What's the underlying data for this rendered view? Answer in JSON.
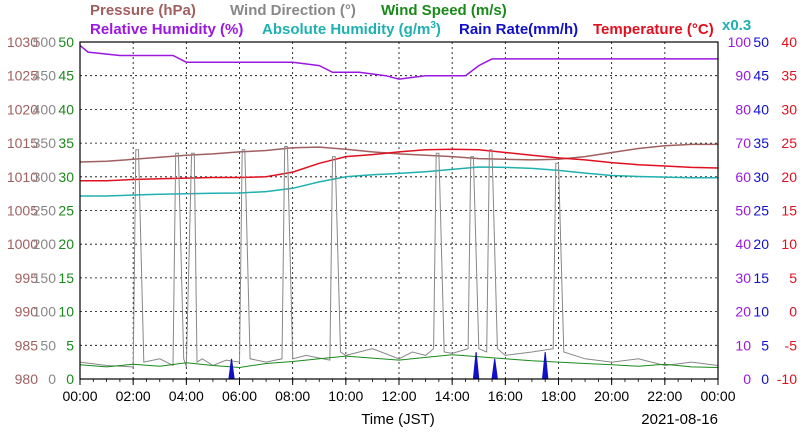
{
  "chart_data": {
    "type": "line",
    "date": "2021-08-16",
    "xlabel": "Time (JST)",
    "x_ticks": [
      "00:00",
      "02:00",
      "04:00",
      "06:00",
      "08:00",
      "10:00",
      "12:00",
      "14:00",
      "16:00",
      "18:00",
      "20:00",
      "22:00",
      "00:00"
    ],
    "grid": true,
    "legend": {
      "row1": [
        {
          "text": "Pressure (hPa)",
          "color": "#a06060"
        },
        {
          "text": "Wind Direction (°)",
          "color": "#888888"
        },
        {
          "text": "Wind Speed (m/s)",
          "color": "#1a8a1a"
        }
      ],
      "row2": [
        {
          "text": "Relative Humidity (%)",
          "color": "#9a18e0"
        },
        {
          "text": "Absolute Humidity (g/m",
          "sup": "3",
          "tail": ")",
          "color": "#20b0b0"
        },
        {
          "text": "Rain Rate(mm/h)",
          "color": "#1010c8"
        },
        {
          "text": "Temperature (°C)",
          "color": "#e01020"
        },
        {
          "text": "x0.3",
          "color": "#20b0b0"
        }
      ]
    },
    "axes": {
      "pressure": {
        "label": "Pressure (hPa)",
        "range": [
          980,
          1030
        ],
        "ticks": [
          "980",
          "985",
          "990",
          "995",
          "1000",
          "1005",
          "1010",
          "1015",
          "1020",
          "1025",
          "1030"
        ],
        "color": "#a06060"
      },
      "wind_direction": {
        "label": "Wind Direction (°)",
        "range": [
          0,
          500
        ],
        "ticks": [
          "0",
          "50",
          "100",
          "150",
          "200",
          "250",
          "300",
          "350",
          "400",
          "450",
          "500"
        ],
        "color": "#888888"
      },
      "wind_speed": {
        "label": "Wind Speed (m/s)",
        "range": [
          0,
          50
        ],
        "ticks": [
          "0",
          "5",
          "10",
          "15",
          "20",
          "25",
          "30",
          "35",
          "40",
          "45",
          "50"
        ],
        "color": "#1a8a1a"
      },
      "relative_humidity": {
        "label": "Relative Humidity (%)",
        "range": [
          0,
          100
        ],
        "ticks": [
          "0",
          "10",
          "20",
          "30",
          "40",
          "50",
          "60",
          "70",
          "80",
          "90",
          "100"
        ],
        "color": "#9a18e0"
      },
      "rain_rate": {
        "label": "Rain Rate(mm/h)",
        "range": [
          0,
          50
        ],
        "ticks": [
          "0",
          "5",
          "10",
          "15",
          "20",
          "25",
          "30",
          "35",
          "40",
          "45",
          "50"
        ],
        "color": "#1010c8"
      },
      "temperature": {
        "label": "Temperature (°C)",
        "range": [
          -10,
          40
        ],
        "ticks": [
          "-10",
          "-5",
          "0",
          "5",
          "10",
          "15",
          "20",
          "25",
          "30",
          "35",
          "40"
        ],
        "color": "#e01020"
      }
    },
    "series": [
      {
        "name": "Pressure (hPa)",
        "axis": "pressure",
        "color": "#a06060",
        "x": [
          0,
          1,
          2,
          3,
          4,
          5,
          6,
          7,
          8,
          9,
          10,
          11,
          12,
          13,
          14,
          15,
          16,
          17,
          18,
          19,
          20,
          21,
          22,
          23,
          24
        ],
        "y": [
          1012.2,
          1012.3,
          1012.6,
          1012.9,
          1013.2,
          1013.4,
          1013.7,
          1013.9,
          1014.3,
          1014.4,
          1014.1,
          1013.7,
          1013.4,
          1013.2,
          1013.0,
          1012.7,
          1012.6,
          1012.5,
          1012.6,
          1013.0,
          1013.6,
          1014.2,
          1014.6,
          1014.8,
          1014.8
        ]
      },
      {
        "name": "Relative Humidity (%)",
        "axis": "relative_humidity",
        "color": "#9a18e0",
        "x": [
          0,
          0.3,
          1.5,
          3.5,
          4,
          6,
          8,
          9,
          9.5,
          10.5,
          11.5,
          12,
          13,
          14,
          14.5,
          15,
          15.5,
          16,
          18,
          20,
          22,
          24
        ],
        "y": [
          99,
          97,
          96,
          96,
          94,
          94,
          94,
          93,
          91,
          91,
          90,
          89,
          90,
          90,
          90,
          93,
          95,
          95,
          95,
          95,
          95,
          95
        ]
      },
      {
        "name": "Absolute Humidity (g/m³)",
        "axis": "relative_humidity",
        "color": "#20b0b0",
        "x": [
          0,
          1,
          2,
          3,
          4,
          5,
          6,
          7,
          8,
          9,
          10,
          11,
          12,
          13,
          14,
          15,
          16,
          17,
          18,
          19,
          20,
          21,
          22,
          23,
          24
        ],
        "y": [
          54.3,
          54.3,
          54.6,
          54.8,
          55.0,
          55.1,
          55.2,
          55.6,
          56.6,
          58.5,
          60.0,
          60.6,
          61.0,
          61.5,
          62.2,
          62.9,
          62.8,
          62.5,
          61.9,
          61.1,
          60.4,
          60.1,
          59.9,
          59.7,
          59.7
        ]
      },
      {
        "name": "Temperature (°C)",
        "axis": "temperature",
        "color": "#e01020",
        "x": [
          0,
          1,
          2,
          3,
          4,
          5,
          6,
          7,
          8,
          9,
          10,
          11,
          12,
          13,
          14,
          15,
          16,
          17,
          18,
          19,
          20,
          21,
          22,
          23,
          24
        ],
        "y": [
          19.4,
          19.4,
          19.6,
          19.7,
          19.8,
          19.9,
          19.9,
          20.0,
          20.7,
          22.0,
          23.0,
          23.3,
          23.7,
          24.0,
          24.1,
          24.0,
          23.6,
          23.2,
          22.8,
          22.5,
          22.1,
          21.8,
          21.6,
          21.4,
          21.3
        ]
      },
      {
        "name": "Wind Direction (°)",
        "axis": "wind_direction",
        "color": "#888888",
        "x": [
          0,
          1,
          2,
          2.1,
          2.2,
          2.4,
          3,
          3.5,
          3.6,
          3.7,
          3.9,
          4,
          4.2,
          4.3,
          4.4,
          4.6,
          5,
          5.5,
          6,
          6.1,
          6.2,
          6.4,
          7,
          7.6,
          7.7,
          7.8,
          8,
          8.5,
          9.4,
          9.5,
          9.6,
          9.8,
          10,
          11,
          12,
          12.5,
          13,
          13.3,
          13.4,
          13.5,
          13.7,
          14,
          14.6,
          14.7,
          14.8,
          15,
          15.3,
          15.4,
          15.5,
          15.7,
          16,
          17,
          17.8,
          17.9,
          18,
          18.2,
          19,
          20,
          21,
          22,
          23,
          24
        ],
        "y": [
          25,
          20,
          18,
          340,
          340,
          25,
          30,
          20,
          335,
          335,
          30,
          18,
          335,
          335,
          25,
          30,
          20,
          28,
          25,
          340,
          340,
          30,
          25,
          30,
          345,
          345,
          30,
          35,
          28,
          330,
          330,
          40,
          35,
          45,
          30,
          40,
          35,
          45,
          335,
          335,
          40,
          38,
          45,
          330,
          330,
          45,
          40,
          340,
          340,
          45,
          35,
          40,
          45,
          320,
          320,
          40,
          30,
          25,
          30,
          20,
          25,
          20
        ]
      },
      {
        "name": "Wind Speed (m/s)",
        "axis": "wind_speed",
        "color": "#1a8a1a",
        "x": [
          0,
          1,
          2,
          3,
          4,
          5,
          6,
          7,
          8,
          9,
          10,
          11,
          12,
          13,
          14,
          15,
          16,
          17,
          18,
          19,
          20,
          21,
          22,
          23,
          24
        ],
        "y": [
          2.1,
          1.8,
          2.2,
          1.9,
          2.4,
          2.0,
          1.7,
          2.3,
          2.6,
          3.0,
          3.4,
          3.1,
          2.8,
          3.2,
          3.6,
          3.3,
          3.0,
          2.7,
          2.5,
          2.3,
          2.1,
          1.9,
          2.2,
          1.8,
          1.7
        ]
      },
      {
        "name": "Rain Rate(mm/h)",
        "axis": "rain_rate",
        "color": "#1010c8",
        "x": [
          0,
          5.6,
          5.7,
          5.8,
          14.8,
          14.9,
          15.0,
          15.5,
          15.6,
          15.7,
          17.4,
          17.5,
          17.6,
          24
        ],
        "y": [
          0,
          0,
          3,
          0,
          0,
          4,
          0,
          0,
          3,
          0,
          0,
          4,
          0,
          0
        ]
      }
    ]
  }
}
